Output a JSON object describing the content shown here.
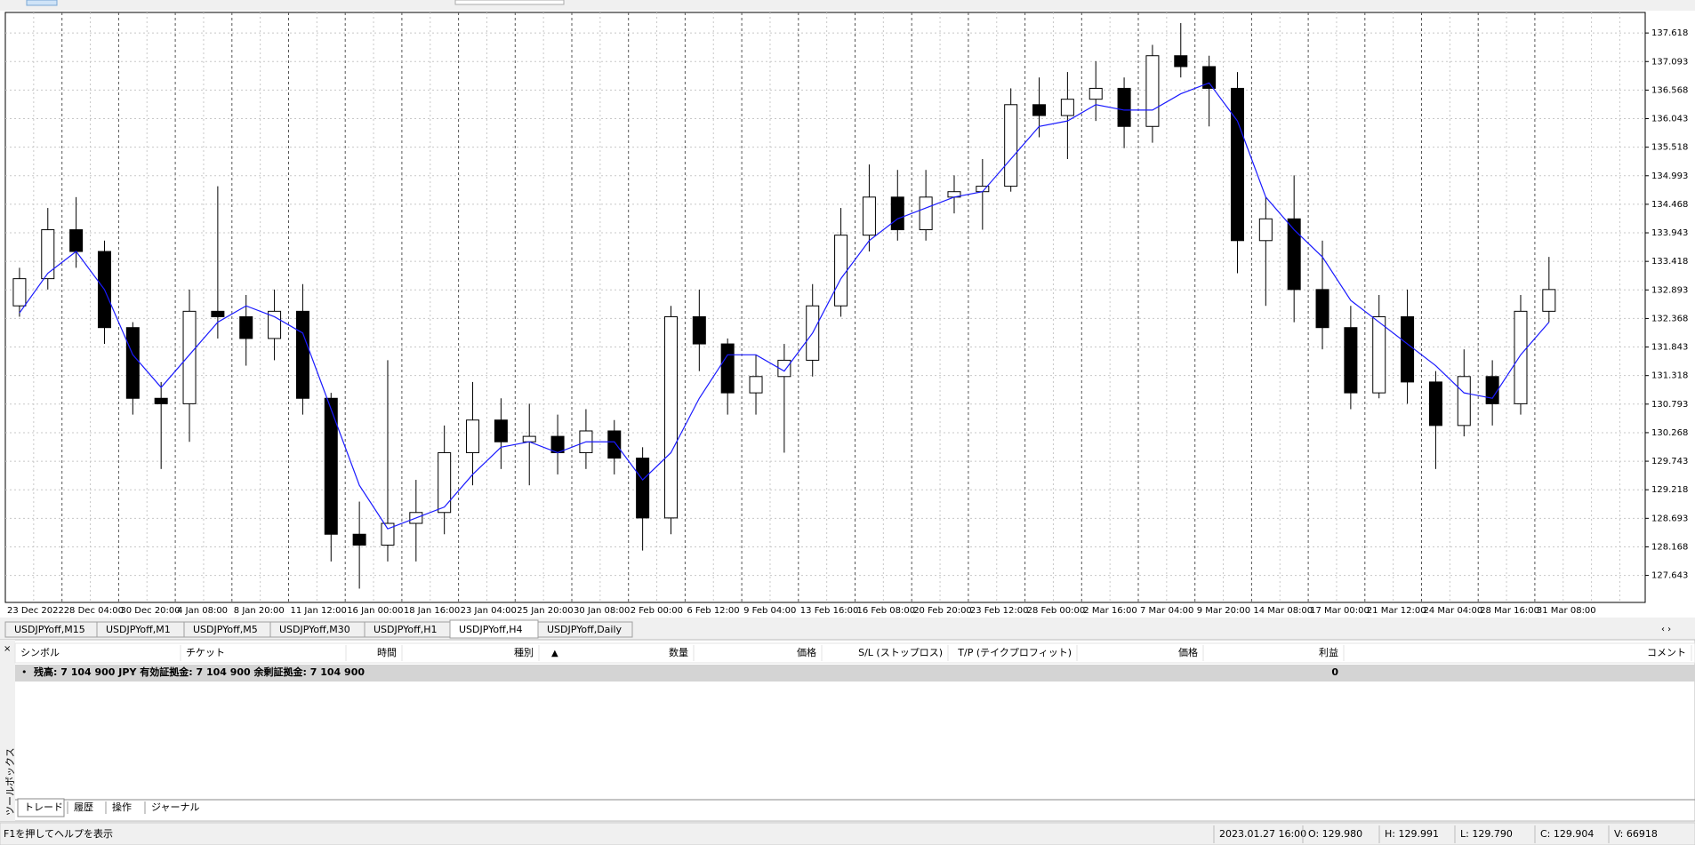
{
  "chart_data": {
    "type": "candlestick",
    "categories": [
      "23 Dec 2022",
      null,
      "28 Dec 04:00",
      null,
      "30 Dec 20:00",
      null,
      "4 Jan 08:00",
      null,
      "8 Jan 20:00",
      null,
      "11 Jan 12:00",
      null,
      "16 Jan 00:00",
      null,
      "18 Jan 16:00",
      null,
      "23 Jan 04:00",
      null,
      "25 Jan 20:00",
      null,
      "30 Jan 08:00",
      null,
      "2 Feb 00:00",
      null,
      "6 Feb 12:00",
      null,
      "9 Feb 04:00",
      null,
      "13 Feb 16:00",
      null,
      "16 Feb 08:00",
      null,
      "20 Feb 20:00",
      null,
      "23 Feb 12:00",
      null,
      "28 Feb 00:00",
      null,
      "2 Mar 16:00",
      null,
      "7 Mar 04:00",
      null,
      "9 Mar 20:00",
      null,
      "14 Mar 08:00",
      null,
      "17 Mar 00:00",
      null,
      "21 Mar 12:00",
      null,
      "24 Mar 04:00",
      null,
      "28 Mar 16:00",
      null,
      "31 Mar 08:00"
    ],
    "open": [
      132.6,
      133.1,
      134.0,
      133.6,
      132.2,
      130.9,
      130.8,
      132.5,
      132.4,
      132.0,
      132.5,
      130.9,
      128.4,
      128.2,
      128.6,
      128.8,
      129.9,
      130.5,
      130.1,
      130.2,
      129.9,
      130.3,
      129.8,
      128.7,
      132.4,
      131.9,
      131.0,
      131.3,
      131.6,
      132.6,
      133.9,
      134.6,
      134.0,
      134.6,
      134.7,
      134.8,
      136.3,
      136.1,
      136.4,
      136.6,
      135.9,
      137.2,
      137.0,
      136.6,
      133.8,
      134.2,
      132.9,
      132.2,
      131.0,
      132.4,
      131.2,
      130.4,
      131.3,
      130.8,
      132.5
    ],
    "high": [
      133.3,
      134.4,
      134.6,
      133.8,
      132.3,
      131.2,
      132.9,
      134.8,
      132.8,
      132.9,
      133.0,
      131.0,
      129.0,
      131.6,
      129.4,
      130.4,
      131.2,
      130.9,
      130.8,
      130.6,
      130.7,
      130.5,
      130.0,
      132.6,
      132.9,
      132.0,
      131.7,
      131.9,
      133.0,
      134.4,
      135.2,
      135.1,
      135.1,
      135.0,
      135.3,
      136.6,
      136.8,
      136.9,
      137.1,
      136.8,
      137.4,
      137.8,
      137.2,
      136.9,
      134.6,
      135.0,
      133.8,
      132.6,
      132.8,
      132.9,
      131.4,
      131.8,
      131.6,
      132.8,
      133.5
    ],
    "low": [
      132.4,
      132.9,
      133.3,
      131.9,
      130.6,
      129.6,
      130.1,
      132.0,
      131.5,
      131.6,
      130.6,
      127.9,
      127.4,
      127.9,
      127.9,
      128.4,
      129.3,
      129.6,
      129.3,
      129.5,
      129.6,
      129.5,
      128.1,
      128.4,
      131.4,
      130.6,
      130.6,
      129.9,
      131.3,
      132.4,
      133.6,
      133.8,
      133.8,
      134.3,
      134.0,
      134.7,
      135.7,
      135.3,
      136.0,
      135.5,
      135.6,
      136.8,
      135.9,
      133.2,
      132.6,
      132.3,
      131.8,
      130.7,
      130.9,
      130.8,
      129.6,
      130.2,
      130.4,
      130.6,
      132.3
    ],
    "close": [
      133.1,
      134.0,
      133.6,
      132.2,
      130.9,
      130.8,
      132.5,
      132.4,
      132.0,
      132.5,
      130.9,
      128.4,
      128.2,
      128.6,
      128.8,
      129.9,
      130.5,
      130.1,
      130.2,
      129.9,
      130.3,
      129.8,
      128.7,
      132.4,
      131.9,
      131.0,
      131.3,
      131.6,
      132.6,
      133.9,
      134.6,
      134.0,
      134.6,
      134.7,
      134.8,
      136.3,
      136.1,
      136.4,
      136.6,
      135.9,
      137.2,
      137.0,
      136.6,
      133.8,
      134.2,
      132.9,
      132.2,
      131.0,
      132.4,
      131.2,
      130.4,
      131.3,
      130.8,
      132.5,
      132.9
    ],
    "candle_up": "#ffffff",
    "candle_down": "#000000",
    "wick_color": "#000000",
    "ma": {
      "color": "#1a1aff",
      "values": [
        132.47,
        133.2,
        133.6,
        132.9,
        131.7,
        131.1,
        131.7,
        132.3,
        132.6,
        132.4,
        132.1,
        130.7,
        129.3,
        128.5,
        128.7,
        128.9,
        129.5,
        130.0,
        130.1,
        129.9,
        130.1,
        130.1,
        129.4,
        129.9,
        130.9,
        131.7,
        131.7,
        131.4,
        132.1,
        133.1,
        133.8,
        134.2,
        134.4,
        134.6,
        134.7,
        135.3,
        135.9,
        136.0,
        136.3,
        136.2,
        136.2,
        136.5,
        136.7,
        136.0,
        134.6,
        134.0,
        133.5,
        132.7,
        132.3,
        131.9,
        131.5,
        131.0,
        130.9,
        131.7,
        132.3
      ]
    },
    "ylim": [
      127.146,
      137.996
    ],
    "yticks": [
      127.643,
      128.168,
      128.693,
      129.218,
      129.743,
      130.268,
      130.793,
      131.318,
      131.843,
      132.368,
      132.893,
      133.418,
      133.943,
      134.468,
      134.993,
      135.518,
      136.043,
      136.568,
      137.093,
      137.618
    ],
    "grid": true
  },
  "ui": {
    "chart_tabs": [
      "USDJPYoff,M15",
      "USDJPYoff,M1",
      "USDJPYoff,M5",
      "USDJPYoff,M30",
      "USDJPYoff,H1",
      "USDJPYoff,H4",
      "USDJPYoff,Daily"
    ],
    "terminal": {
      "columns": [
        "シンボル",
        "チケット",
        "時間",
        "種別",
        "数量",
        "価格",
        "S/L (ストップロス)",
        "T/P (テイクプロフィット)",
        "価格",
        "利益",
        "コメント"
      ],
      "balance_text": "残高: 7 104 900 JPY  有効証拠金: 7 104 900  余剰証拠金: 7 104 900",
      "profit": 0,
      "tabs": [
        "トレード",
        "履歴",
        "操作",
        "ジャーナル"
      ],
      "side_label": "ツールボックス"
    },
    "status_bar": {
      "help": "F1を押してヘルプを表示",
      "time": "2023.01.27 16:00",
      "open": "O: 129.980",
      "high": "H: 129.991",
      "low": "L: 129.790",
      "close": "C: 129.904",
      "volume": "V: 66918"
    }
  }
}
